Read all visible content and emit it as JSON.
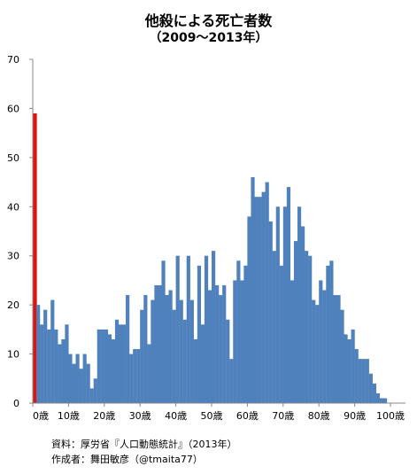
{
  "chart_data": {
    "type": "bar",
    "title": "他殺による死亡者数",
    "subtitle": "（2009～2013年）",
    "xlabel": "",
    "ylabel": "",
    "ylim": [
      0,
      70
    ],
    "yticks": [
      "0",
      "10",
      "20",
      "30",
      "40",
      "50",
      "60",
      "70"
    ],
    "xticks": [
      "0歳",
      "10歳",
      "20歳",
      "30歳",
      "40歳",
      "50歳",
      "60歳",
      "70歳",
      "80歳",
      "90歳",
      "100歳"
    ],
    "xtick_ages": [
      0,
      10,
      20,
      30,
      40,
      50,
      60,
      70,
      80,
      90,
      100
    ],
    "grid": false,
    "categories": [
      0,
      1,
      2,
      3,
      4,
      5,
      6,
      7,
      8,
      9,
      10,
      11,
      12,
      13,
      14,
      15,
      16,
      17,
      18,
      19,
      20,
      21,
      22,
      23,
      24,
      25,
      26,
      27,
      28,
      29,
      30,
      31,
      32,
      33,
      34,
      35,
      36,
      37,
      38,
      39,
      40,
      41,
      42,
      43,
      44,
      45,
      46,
      47,
      48,
      49,
      50,
      51,
      52,
      53,
      54,
      55,
      56,
      57,
      58,
      59,
      60,
      61,
      62,
      63,
      64,
      65,
      66,
      67,
      68,
      69,
      70,
      71,
      72,
      73,
      74,
      75,
      76,
      77,
      78,
      79,
      80,
      81,
      82,
      83,
      84,
      85,
      86,
      87,
      88,
      89,
      90,
      91,
      92,
      93,
      94,
      95,
      96,
      97,
      98,
      99
    ],
    "values": [
      59,
      20,
      16,
      19,
      15,
      21,
      15,
      12,
      13,
      16,
      10,
      8,
      10,
      7,
      10,
      8,
      3,
      5,
      15,
      15,
      15,
      14,
      13,
      17,
      16,
      16,
      22,
      10,
      11,
      11,
      19,
      22,
      12,
      21,
      24,
      24,
      29,
      22,
      23,
      19,
      30,
      21,
      17,
      30,
      21,
      13,
      28,
      16,
      30,
      23,
      31,
      24,
      22,
      24,
      17,
      9,
      25,
      29,
      25,
      28,
      38,
      46,
      42,
      42,
      43,
      45,
      37,
      31,
      40,
      28,
      40,
      44,
      25,
      33,
      40,
      36,
      31,
      30,
      21,
      20,
      25,
      23,
      28,
      29,
      22,
      22,
      19,
      14,
      13,
      15,
      11,
      9,
      9,
      9,
      6,
      4,
      2,
      1,
      1,
      0
    ],
    "highlight_index": 0,
    "bar_color": "#4f81bd",
    "highlight_color": "#e3120b"
  },
  "notes": {
    "source": "資料：厚労省『人口動態統計』（2013年）",
    "author": "作成者：舞田敏彦（@tmaita77）"
  }
}
